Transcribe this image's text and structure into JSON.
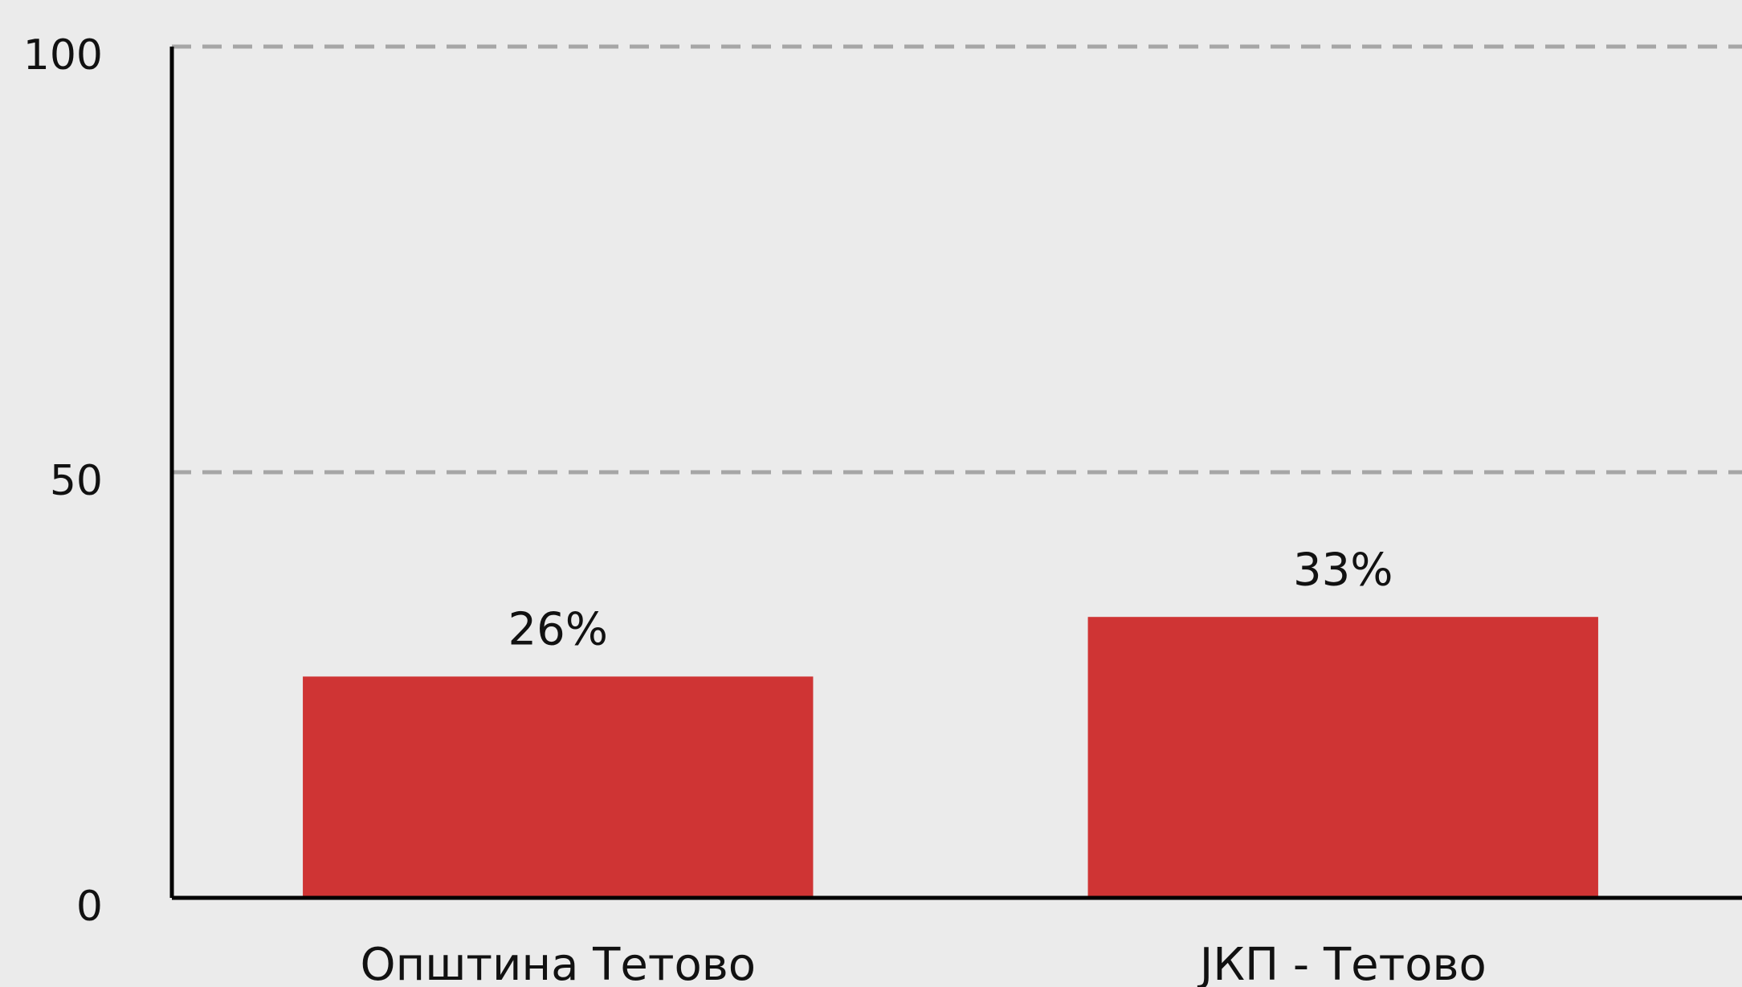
{
  "chart_data": {
    "type": "bar",
    "categories": [
      "Општина Тетово",
      "ЈКП - Тетово"
    ],
    "values": [
      26,
      33
    ],
    "value_labels": [
      "26%",
      "33%"
    ],
    "color": "#cf3434",
    "ylim": [
      0,
      100
    ],
    "yticks": [
      0,
      50,
      100
    ],
    "grid": true
  }
}
